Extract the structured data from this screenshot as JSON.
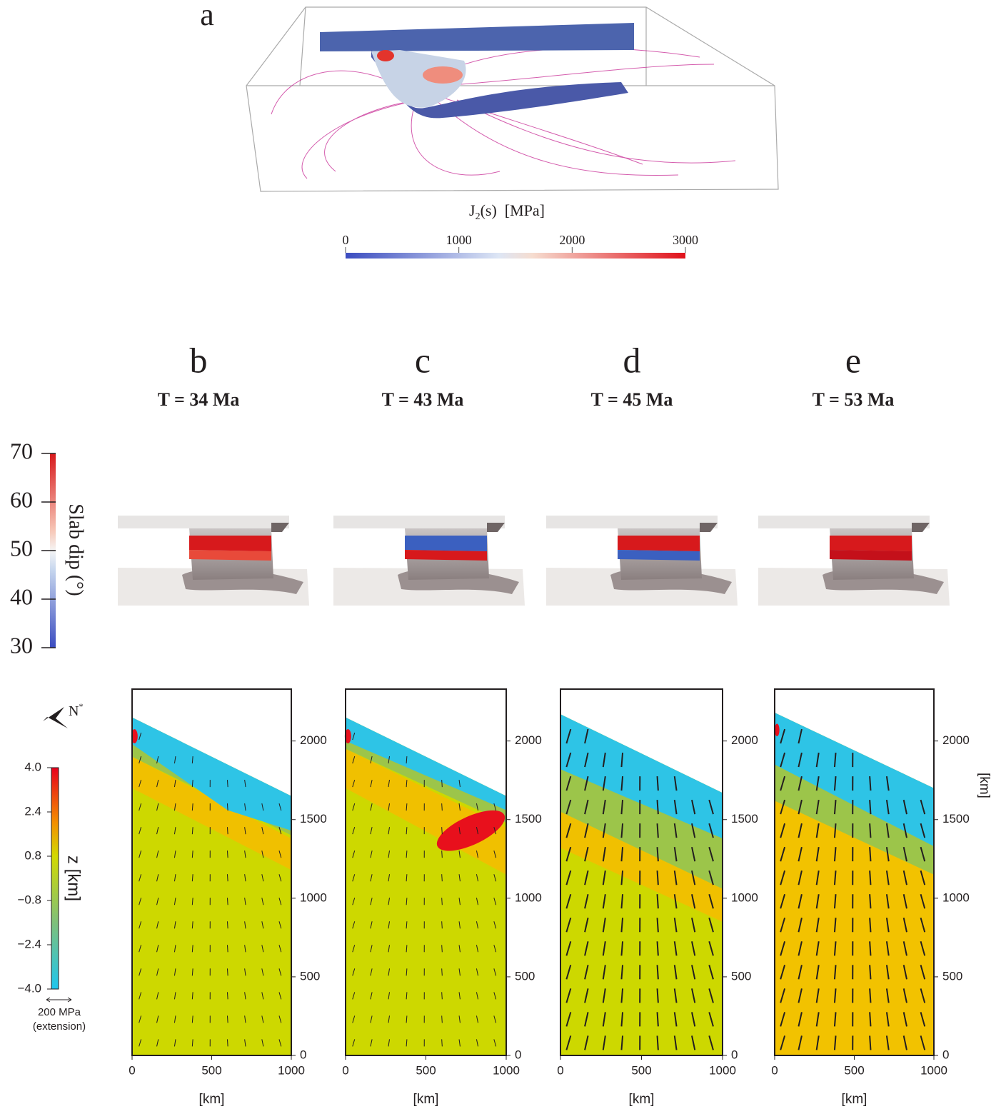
{
  "panel_a": {
    "label": "a",
    "colorbar": {
      "title": {
        "main": "J",
        "subscript": "2",
        "rest": "(s)  [MPa]"
      },
      "lim": [
        0,
        3000
      ],
      "ticks": [
        0,
        1000,
        2000,
        3000
      ]
    }
  },
  "panels": [
    {
      "label": "b",
      "time": "T = 34 Ma"
    },
    {
      "label": "c",
      "time": "T = 43 Ma"
    },
    {
      "label": "d",
      "time": "T = 45 Ma"
    },
    {
      "label": "e",
      "time": "T = 53 Ma"
    }
  ],
  "map_axes": {
    "xlim": [
      0,
      1000
    ],
    "xticks": [
      0,
      500,
      1000
    ],
    "ylim": [
      0,
      2330
    ],
    "yticks": [
      0,
      500,
      1000,
      1500,
      2000
    ],
    "xlabel": "[km]",
    "ylabel": "[km]"
  },
  "slab_dip_colorbar": {
    "title": "Slab dip (°)",
    "lim": [
      30,
      70
    ],
    "ticks": [
      70,
      60,
      50,
      40,
      30
    ]
  },
  "z_colorbar": {
    "title": "z [km]",
    "lim": [
      -4,
      4
    ],
    "ticks": [
      {
        "value": 4,
        "label": "4.0"
      },
      {
        "value": 2.4,
        "label": "2.4"
      },
      {
        "value": 0.8,
        "label": "0.8"
      },
      {
        "value": -0.8,
        "label": "−0.8"
      },
      {
        "value": -2.4,
        "label": "−2.4"
      },
      {
        "value": -4,
        "label": "−4.0"
      }
    ]
  },
  "north": {
    "main": "N",
    "sup": "*"
  },
  "stress_scale": {
    "label": "200 MPa",
    "note": "(extension)"
  }
}
